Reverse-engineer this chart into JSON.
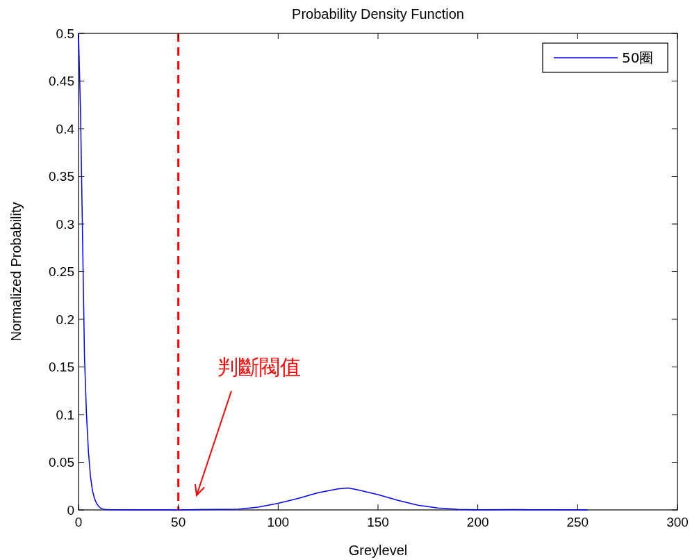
{
  "chart_data": {
    "type": "line",
    "title": "Probability Density Function",
    "xlabel": "Greylevel",
    "ylabel": "Normalized Probability",
    "x": [
      0,
      1,
      2,
      3,
      4,
      5,
      6,
      7,
      8,
      9,
      10,
      11,
      12,
      13,
      15,
      20,
      30,
      50,
      60,
      70,
      80,
      90,
      100,
      110,
      120,
      130,
      135,
      140,
      150,
      160,
      170,
      180,
      190,
      200,
      220,
      240,
      255
    ],
    "series": [
      {
        "name": "50圈",
        "color": "#0000ff",
        "values": [
          0.5,
          0.418,
          0.29,
          0.16,
          0.1,
          0.06,
          0.035,
          0.02,
          0.012,
          0.007,
          0.004,
          0.002,
          0.001,
          0.0005,
          0.0003,
          0.0002,
          0,
          0,
          0.0003,
          0.0005,
          0.0008,
          0.003,
          0.007,
          0.012,
          0.018,
          0.022,
          0.023,
          0.021,
          0.016,
          0.01,
          0.005,
          0.002,
          0.0006,
          0.0002,
          0.0003,
          0.0002,
          0
        ]
      }
    ],
    "xlim": [
      0,
      300
    ],
    "xticks": [
      0,
      50,
      100,
      150,
      200,
      250,
      300
    ],
    "ylim": [
      0,
      0.5
    ],
    "yticks": [
      0,
      0.05,
      0.1,
      0.15,
      0.2,
      0.25,
      0.3,
      0.35,
      0.4,
      0.45,
      0.5
    ],
    "ref_lines": [
      {
        "axis": "x",
        "value": 50,
        "color": "#ff0000",
        "line_style": "dashed"
      }
    ],
    "annotations": [
      "判斷閥值"
    ],
    "legend": "top right",
    "grid": false,
    "marker": "none",
    "line_style": "solid"
  }
}
